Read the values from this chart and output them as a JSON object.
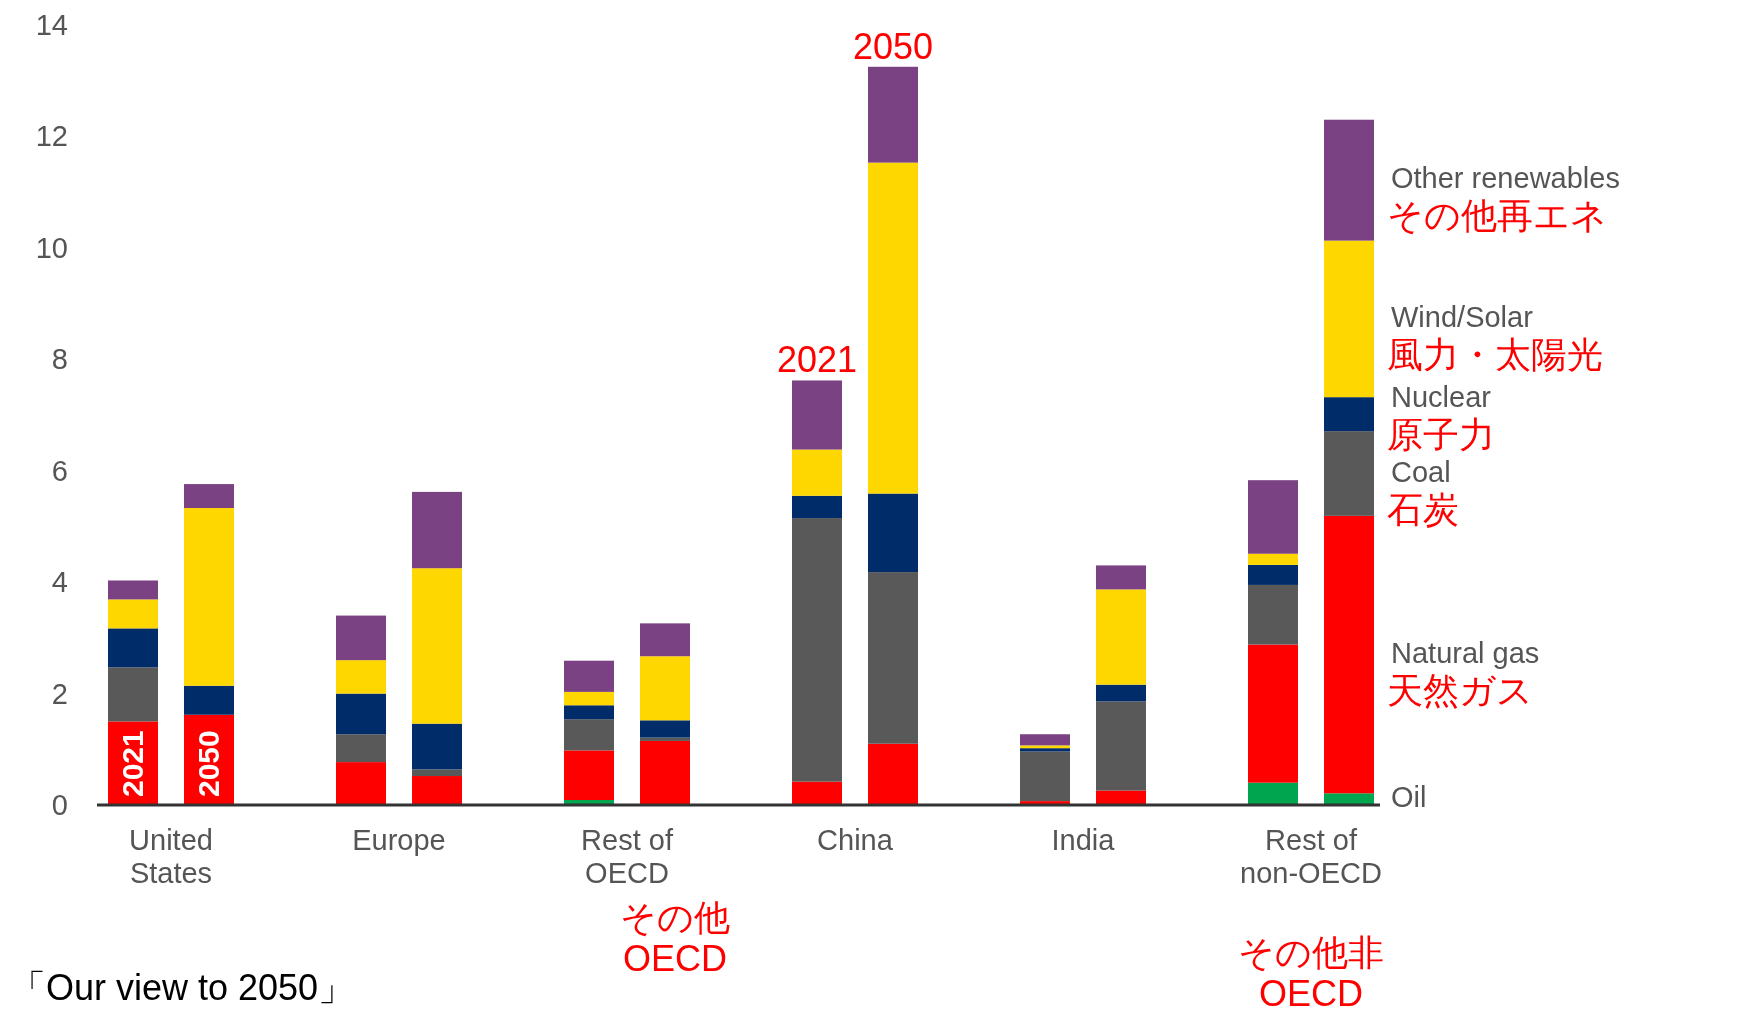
{
  "chart_data": {
    "type": "bar",
    "stacked": true,
    "legend": "right",
    "categories": [
      "United States",
      null,
      null,
      "Europe",
      null,
      null,
      "Rest of OECD",
      null,
      null,
      "China",
      null,
      null,
      "India",
      null,
      null,
      "Rest of non-OECD",
      null
    ],
    "series": [
      {
        "name": "Oil",
        "color": "#00a550",
        "values": [
          0,
          0,
          null,
          0,
          0,
          null,
          0.09,
          0,
          null,
          0,
          0,
          null,
          0,
          0,
          null,
          0.4,
          0.21
        ]
      },
      {
        "name": "Natural gas",
        "color": "#ff0000",
        "values": [
          1.5,
          1.62,
          null,
          0.77,
          0.52,
          null,
          0.89,
          1.15,
          null,
          0.42,
          1.1,
          null,
          0.07,
          0.26,
          null,
          2.48,
          4.98
        ]
      },
      {
        "name": "Coal",
        "color": "#595959",
        "values": [
          0.97,
          0,
          null,
          0.5,
          0.12,
          null,
          0.56,
          0.06,
          null,
          4.73,
          3.08,
          null,
          0.89,
          1.6,
          null,
          1.07,
          1.52
        ]
      },
      {
        "name": "Nuclear",
        "color": "#002d6a",
        "values": [
          0.7,
          0.52,
          null,
          0.73,
          0.82,
          null,
          0.25,
          0.31,
          null,
          0.4,
          1.41,
          null,
          0.06,
          0.3,
          null,
          0.36,
          0.61
        ]
      },
      {
        "name": "Wind/Solar",
        "color": "#ffd700",
        "values": [
          0.52,
          3.19,
          null,
          0.6,
          2.79,
          null,
          0.24,
          1.15,
          null,
          0.83,
          5.94,
          null,
          0.05,
          1.71,
          null,
          0.2,
          2.81
        ]
      },
      {
        "name": "Other renewables",
        "color": "#7b4283",
        "values": [
          0.34,
          0.43,
          null,
          0.8,
          1.37,
          null,
          0.56,
          0.59,
          null,
          1.24,
          1.72,
          null,
          0.2,
          0.43,
          null,
          1.32,
          2.17
        ]
      }
    ],
    "ylim": [
      0,
      14
    ],
    "yticks": [
      0,
      2,
      4,
      6,
      8,
      10,
      12,
      14
    ],
    "grid": false,
    "annotations": [
      "その他再エネ",
      "風力・太陽光",
      "原子力",
      "石炭",
      "天然ガス",
      "その他\nOECD",
      "その他非\nOECD",
      "2021",
      "2050",
      "2021",
      "2050",
      "「Our view to 2050」"
    ]
  }
}
